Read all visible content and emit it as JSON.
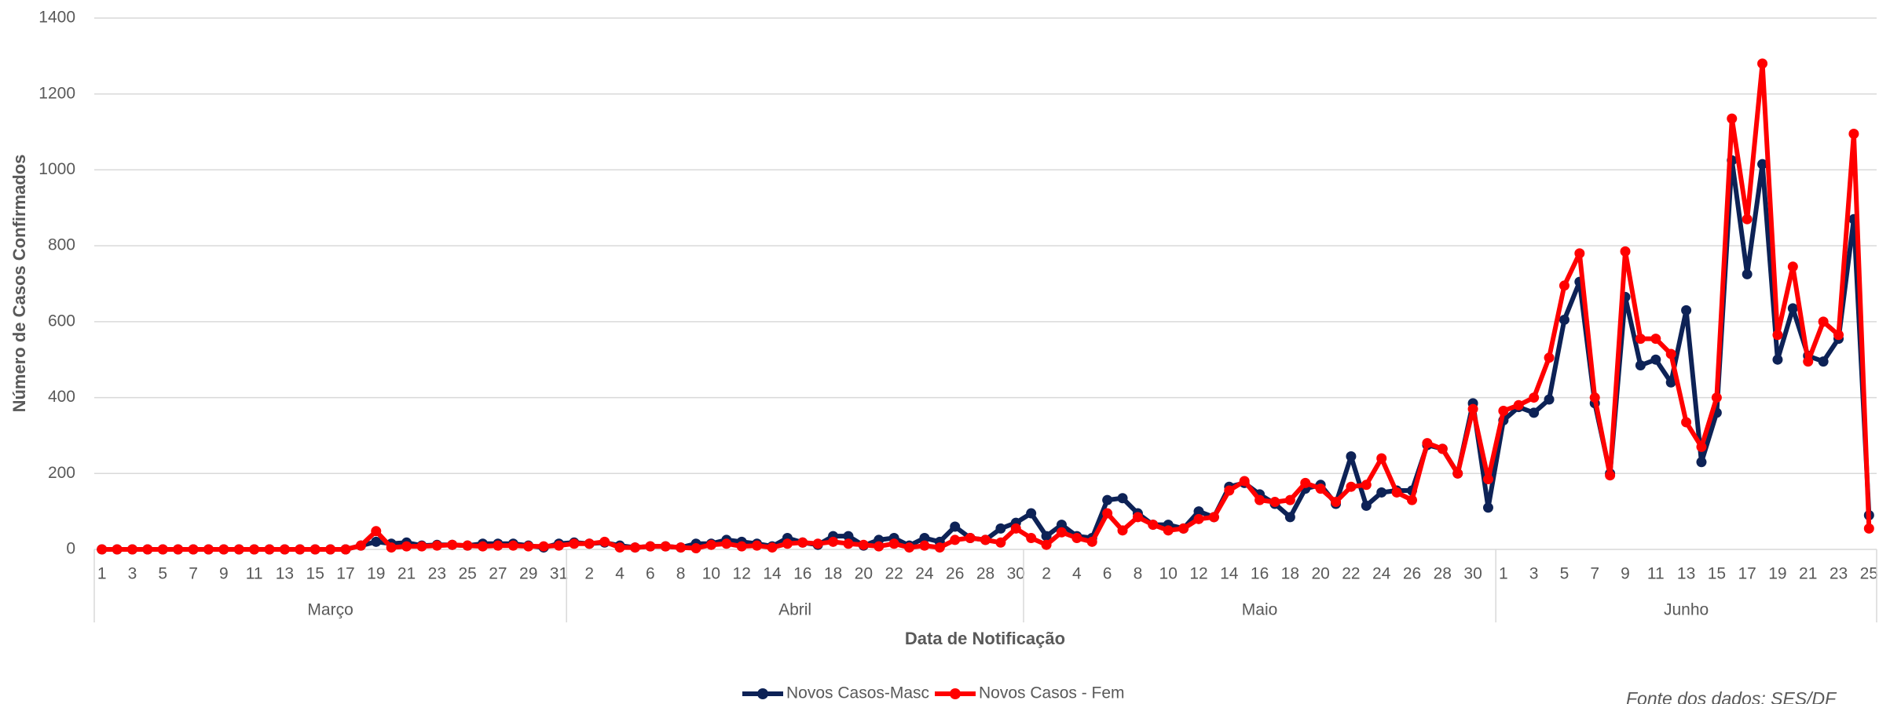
{
  "chart_data": {
    "type": "line",
    "y_label": "Número de Casos Confirmados",
    "x_label": "Data de Notificação",
    "source": "Fonte dos dados: SES/DF",
    "categories": [
      "1",
      null,
      "3",
      null,
      "5",
      null,
      "7",
      null,
      "9",
      null,
      "11",
      null,
      "13",
      null,
      "15",
      null,
      "17",
      null,
      "19",
      null,
      "21",
      null,
      "23",
      null,
      "25",
      null,
      "27",
      null,
      "29",
      null,
      "31",
      null,
      "2",
      null,
      "4",
      null,
      "6",
      null,
      "8",
      null,
      "10",
      null,
      "12",
      null,
      "14",
      null,
      "16",
      null,
      "18",
      null,
      "20",
      null,
      "22",
      null,
      "24",
      null,
      "26",
      null,
      "28",
      null,
      "30",
      null,
      "2",
      null,
      "4",
      null,
      "6",
      null,
      "8",
      null,
      "10",
      null,
      "12",
      null,
      "14",
      null,
      "16",
      null,
      "18",
      null,
      "20",
      null,
      "22",
      null,
      "24",
      null,
      "26",
      null,
      "28",
      null,
      "30",
      null,
      "1",
      null,
      "3",
      null,
      "5",
      null,
      "7",
      null,
      "9",
      null,
      "11",
      null,
      "13",
      null,
      "15",
      null,
      "17",
      null,
      "19",
      null,
      "21",
      null,
      "23",
      null,
      "25"
    ],
    "category_groups": [
      {
        "label": "Março",
        "span": 31
      },
      {
        "label": "Abril",
        "span": 30
      },
      {
        "label": "Maio",
        "span": 31
      },
      {
        "label": "Junho",
        "span": 25
      }
    ],
    "series": [
      {
        "name": "Novos Casos-Masc",
        "color": "#0d2256",
        "values": [
          0,
          0,
          0,
          0,
          0,
          0,
          0,
          0,
          0,
          0,
          0,
          0,
          0,
          0,
          0,
          0,
          0,
          10,
          20,
          15,
          18,
          10,
          12,
          12,
          10,
          15,
          15,
          15,
          10,
          5,
          15,
          18,
          15,
          18,
          10,
          5,
          8,
          8,
          5,
          15,
          15,
          25,
          20,
          15,
          8,
          30,
          18,
          12,
          35,
          35,
          10,
          25,
          30,
          10,
          30,
          20,
          60,
          30,
          25,
          55,
          70,
          95,
          35,
          65,
          35,
          30,
          130,
          135,
          95,
          65,
          65,
          55,
          100,
          85,
          165,
          175,
          145,
          120,
          85,
          160,
          170,
          120,
          245,
          115,
          150,
          155,
          155,
          275,
          265,
          200,
          385,
          110,
          340,
          375,
          360,
          395,
          605,
          705,
          385,
          200,
          665,
          485,
          500,
          440,
          630,
          230,
          360,
          1025,
          725,
          1015,
          500,
          635,
          510,
          495,
          555,
          870,
          90
        ]
      },
      {
        "name": "Novos Casos - Fem",
        "color": "#ff0000",
        "values": [
          0,
          0,
          0,
          0,
          0,
          0,
          0,
          0,
          0,
          0,
          0,
          0,
          0,
          0,
          0,
          0,
          0,
          10,
          48,
          5,
          8,
          8,
          10,
          12,
          10,
          8,
          10,
          10,
          8,
          8,
          10,
          15,
          15,
          20,
          5,
          5,
          8,
          8,
          5,
          3,
          12,
          15,
          8,
          10,
          5,
          15,
          18,
          15,
          20,
          15,
          12,
          8,
          15,
          5,
          10,
          5,
          25,
          30,
          25,
          18,
          55,
          30,
          12,
          45,
          30,
          20,
          95,
          50,
          85,
          65,
          50,
          55,
          80,
          85,
          155,
          180,
          130,
          125,
          130,
          175,
          160,
          125,
          165,
          170,
          240,
          150,
          130,
          280,
          265,
          200,
          370,
          185,
          365,
          380,
          400,
          505,
          695,
          780,
          400,
          195,
          785,
          555,
          555,
          515,
          335,
          270,
          400,
          1135,
          870,
          1280,
          565,
          745,
          495,
          600,
          565,
          1095,
          55
        ]
      }
    ],
    "ylim": [
      0,
      1400
    ],
    "yticks": [
      0,
      200,
      400,
      600,
      800,
      1000,
      1200,
      1400
    ],
    "grid": true,
    "legend": "bottom"
  }
}
